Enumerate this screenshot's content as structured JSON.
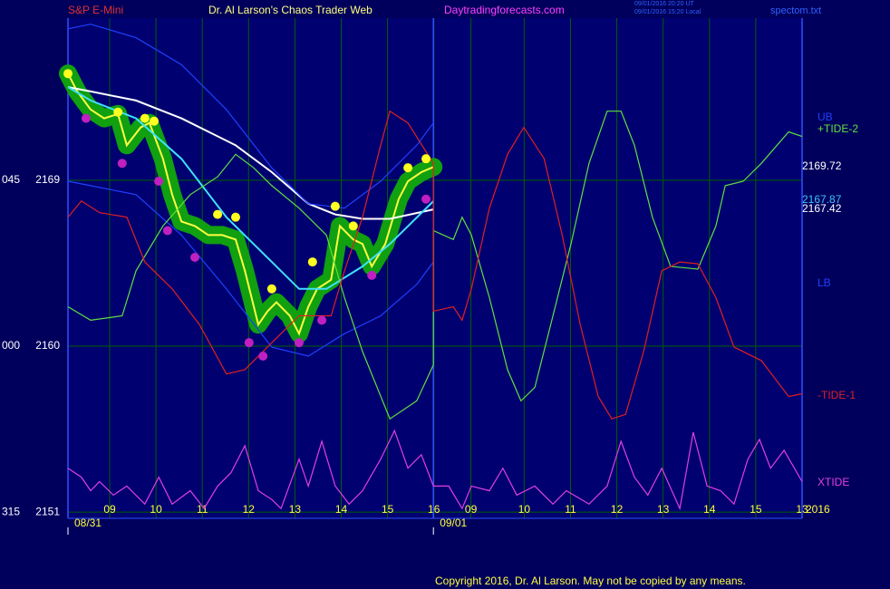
{
  "chart_data": {
    "type": "line",
    "symbol": "S&P E-Mini",
    "title": "Dr. Al Larson's Chaos Trader Web",
    "website": "Daytradingforecasts.com",
    "timestamps": [
      "09/01/2016 20:20 UT",
      "09/01/2016 15:20 Local"
    ],
    "file": "spectom.txt",
    "copyright": "Copyright 2016, Dr. Al Larson. May not be copied by any means.",
    "xlim": [
      0,
      15.85
    ],
    "xticks": [
      {
        "value": 0.9,
        "label": "09"
      },
      {
        "value": 1.9,
        "label": "10"
      },
      {
        "value": 2.9,
        "label": "11"
      },
      {
        "value": 3.9,
        "label": "12"
      },
      {
        "value": 4.9,
        "label": "13"
      },
      {
        "value": 5.9,
        "label": "14"
      },
      {
        "value": 6.9,
        "label": "15"
      },
      {
        "value": 7.9,
        "label": "16"
      },
      {
        "value": 8.7,
        "label": "09"
      },
      {
        "value": 9.85,
        "label": "10"
      },
      {
        "value": 10.85,
        "label": "11"
      },
      {
        "value": 11.85,
        "label": "12"
      },
      {
        "value": 12.85,
        "label": "13"
      },
      {
        "value": 13.85,
        "label": "14"
      },
      {
        "value": 14.85,
        "label": "15"
      },
      {
        "value": 15.85,
        "label": "13"
      }
    ],
    "dates": [
      {
        "value": 0,
        "label": "08/31"
      },
      {
        "value": 7.89,
        "label": "09/01"
      }
    ],
    "ylim": [
      2150.66,
      2177.8
    ],
    "yticks": [
      2151,
      2160,
      2169
    ],
    "ytick_codes": [
      "315",
      "000",
      "045"
    ],
    "grid": true,
    "year": "2016",
    "last_values": [
      2169.72,
      2167.87,
      2167.42
    ],
    "series": [
      {
        "color": "#ffff40",
        "x": [
          0,
          0.2,
          0.49,
          0.78,
          1.08,
          1.27,
          1.57,
          1.76,
          2.05,
          2.25,
          2.45,
          2.74,
          3.03,
          3.33,
          3.62,
          3.82,
          4.11,
          4.31,
          4.5,
          4.79,
          4.99,
          5.19,
          5.38,
          5.68,
          5.87,
          6.16,
          6.36,
          6.56,
          6.85,
          7.14,
          7.34,
          7.63,
          7.89
        ],
        "values": [
          2174.79,
          2173.82,
          2172.84,
          2172.36,
          2172.6,
          2170.9,
          2171.87,
          2172.11,
          2170.17,
          2168.22,
          2166.76,
          2166.52,
          2166.03,
          2166.03,
          2165.79,
          2164.09,
          2161.17,
          2161.9,
          2162.38,
          2161.65,
          2160.68,
          2162.14,
          2163.11,
          2163.6,
          2166.52,
          2165.79,
          2165.55,
          2164.33,
          2165.55,
          2167.98,
          2168.95,
          2169.44,
          2169.72
        ]
      },
      {
        "color": "#ffffff",
        "x": [
          0,
          0.49,
          1.47,
          2.45,
          3.62,
          4.4,
          5.19,
          5.77,
          6.36,
          6.95,
          7.89
        ],
        "values": [
          2174.06,
          2173.82,
          2173.33,
          2172.36,
          2170.9,
          2169.44,
          2167.73,
          2167.15,
          2166.91,
          2166.91,
          2167.42
        ]
      },
      {
        "color": "#40e0ff",
        "x": [
          0,
          0.49,
          1.47,
          2.45,
          3.42,
          4.4,
          4.99,
          5.58,
          6.36,
          6.95,
          7.89
        ],
        "values": [
          2174.06,
          2173.33,
          2172.36,
          2170.17,
          2167.0,
          2164.57,
          2163.11,
          2163.11,
          2164.33,
          2165.55,
          2167.87
        ]
      },
      {
        "name": "UB",
        "color": "#2040ff",
        "x": [
          0,
          0.49,
          1.47,
          2.45,
          3.42,
          4.4,
          5.19,
          5.97,
          6.75,
          7.53,
          7.89
        ],
        "values": [
          2177.22,
          2177.47,
          2176.74,
          2175.28,
          2172.84,
          2169.68,
          2167.73,
          2167.49,
          2168.95,
          2170.9,
          2172.11
        ]
      },
      {
        "name": "LB",
        "color": "#2040ff",
        "x": [
          0,
          0.49,
          1.47,
          2.45,
          3.42,
          4.4,
          5.19,
          5.97,
          6.75,
          7.53,
          7.89
        ],
        "values": [
          2168.95,
          2168.71,
          2168.22,
          2166.03,
          2163.11,
          2159.95,
          2159.46,
          2160.68,
          2161.65,
          2163.35,
          2164.57
        ]
      },
      {
        "name": "+TIDE-2",
        "color": "#60e040",
        "x": [
          0,
          0.49,
          1.17,
          1.47,
          2.05,
          2.64,
          3.23,
          3.62,
          4.01,
          4.4,
          4.99,
          5.58,
          5.97,
          6.36,
          6.95,
          7.53,
          7.89,
          7.89,
          8.32,
          8.51,
          8.71,
          9.1,
          9.49,
          9.78,
          10.08,
          10.47,
          10.86,
          11.25,
          11.64,
          11.94,
          12.23,
          12.62,
          13.01,
          13.6,
          13.99,
          14.19,
          14.58,
          14.97,
          15.56,
          15.85
        ],
        "values": [
          2162.14,
          2161.41,
          2161.65,
          2164.09,
          2166.52,
          2168.22,
          2169.19,
          2170.41,
          2169.68,
          2168.71,
          2167.49,
          2166.03,
          2162.63,
          2159.71,
          2156.06,
          2157.03,
          2158.98,
          2166.27,
          2165.79,
          2167.0,
          2166.03,
          2162.63,
          2158.73,
          2157.03,
          2157.76,
          2161.65,
          2165.55,
          2169.92,
          2172.75,
          2172.75,
          2170.9,
          2167.0,
          2164.33,
          2164.18,
          2166.52,
          2168.71,
          2168.95,
          2169.92,
          2171.63,
          2171.38
        ]
      },
      {
        "name": "-TIDE-1",
        "color": "#e02020",
        "x": [
          0,
          0.29,
          0.68,
          1.27,
          1.66,
          2.25,
          2.84,
          3.42,
          3.82,
          4.4,
          4.99,
          5.68,
          5.97,
          6.36,
          6.75,
          6.95,
          7.34,
          7.89,
          7.89,
          8.32,
          8.51,
          8.71,
          9.1,
          9.49,
          9.84,
          10.28,
          10.67,
          11.06,
          11.45,
          11.74,
          12.04,
          12.43,
          12.82,
          13.21,
          13.6,
          13.99,
          14.38,
          14.97,
          15.56,
          15.85
        ],
        "values": [
          2167.0,
          2167.88,
          2167.25,
          2167.0,
          2164.57,
          2163.11,
          2161.17,
          2158.49,
          2158.73,
          2160.19,
          2161.65,
          2161.65,
          2164.09,
          2167.0,
          2170.9,
          2172.75,
          2172.11,
          2169.92,
          2161.9,
          2162.14,
          2161.41,
          2163.11,
          2167.49,
          2170.41,
          2171.87,
          2170.17,
          2166.03,
          2161.17,
          2157.27,
          2156.06,
          2156.3,
          2159.71,
          2164.09,
          2164.57,
          2164.47,
          2162.63,
          2159.95,
          2159.22,
          2157.27,
          2157.42
        ]
      },
      {
        "name": "XTIDE",
        "color": "#e040e0",
        "x": [
          0,
          0.29,
          0.49,
          0.68,
          0.98,
          1.27,
          1.66,
          1.96,
          2.25,
          2.64,
          2.94,
          3.23,
          3.52,
          3.82,
          4.11,
          4.4,
          4.6,
          4.99,
          5.19,
          5.48,
          5.77,
          6.07,
          6.36,
          6.75,
          7.05,
          7.34,
          7.63,
          7.89,
          8.22,
          8.51,
          8.71,
          9.1,
          9.39,
          9.69,
          10.08,
          10.47,
          10.76,
          11.25,
          11.64,
          11.94,
          12.23,
          12.52,
          12.82,
          13.21,
          13.5,
          13.8,
          14.09,
          14.38,
          14.68,
          14.93,
          15.17,
          15.46,
          15.85
        ],
        "values": [
          2153.38,
          2152.89,
          2152.16,
          2152.65,
          2151.92,
          2152.41,
          2151.43,
          2152.89,
          2151.43,
          2152.16,
          2151.19,
          2152.41,
          2153.14,
          2154.6,
          2152.16,
          2151.68,
          2151.19,
          2153.87,
          2152.41,
          2154.84,
          2152.41,
          2151.43,
          2152.16,
          2153.87,
          2155.42,
          2153.38,
          2154.11,
          2152.41,
          2152.41,
          2151.19,
          2152.41,
          2152.16,
          2153.38,
          2151.92,
          2152.41,
          2151.43,
          2152.16,
          2151.43,
          2152.41,
          2154.84,
          2152.89,
          2151.92,
          2153.38,
          2151.19,
          2155.33,
          2152.41,
          2152.16,
          2151.43,
          2153.87,
          2154.94,
          2153.38,
          2154.35,
          2152.65
        ]
      }
    ],
    "highs": {
      "color": "#ffff20",
      "x": [
        0,
        1.08,
        1.66,
        1.86,
        3.23,
        3.62,
        4.4,
        5.28,
        5.77,
        6.16,
        7.34,
        7.73
      ],
      "values": [
        2174.79,
        2172.7,
        2172.36,
        2172.21,
        2167.15,
        2167.0,
        2163.11,
        2164.57,
        2167.59,
        2166.52,
        2169.68,
        2170.17
      ]
    },
    "lows": {
      "color": "#c020c0",
      "x": [
        0.39,
        1.17,
        1.96,
        2.15,
        2.74,
        3.91,
        4.21,
        4.99,
        5.48,
        6.56,
        7.73
      ],
      "values": [
        2172.36,
        2169.92,
        2168.95,
        2166.27,
        2164.82,
        2160.19,
        2159.46,
        2160.19,
        2161.41,
        2163.84,
        2167.98
      ]
    }
  }
}
